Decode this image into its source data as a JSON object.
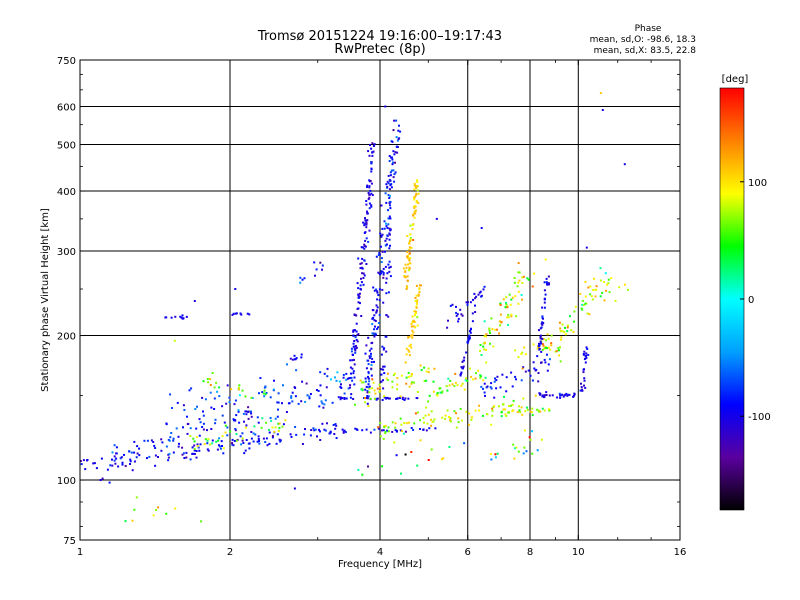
{
  "chart_data": {
    "type": "scatter",
    "title_line1": "Tromsø 20151224 19:16:00–19:17:43",
    "title_line2": "RwPretec (8p)",
    "xlabel": "Frequency [MHz]",
    "ylabel": "Stationary phase Virtual Height [km]",
    "x_scale": "log",
    "y_scale": "log",
    "xlim": [
      1,
      16
    ],
    "ylim": [
      75,
      750
    ],
    "x_ticks": [
      1,
      2,
      4,
      6,
      8,
      10,
      16
    ],
    "y_ticks": [
      75,
      100,
      200,
      300,
      400,
      500,
      600,
      750
    ],
    "x_gridlines": [
      2,
      4,
      6,
      8,
      10
    ],
    "y_gridlines": [
      100,
      200,
      300,
      400,
      500,
      600
    ],
    "grid": true,
    "phase_stats": {
      "heading": "Phase",
      "line_o": "mean, sd,O: -98.6, 18.3",
      "line_x": "mean, sd,X:  83.5, 22.8"
    },
    "colorbar": {
      "label": "[deg]",
      "range": [
        -180,
        180
      ],
      "ticks": [
        100,
        0,
        -100
      ],
      "colors": [
        "#000000",
        "#5a00a0",
        "#0000ff",
        "#00a0ff",
        "#00ffff",
        "#00ff00",
        "#ffff00",
        "#ff8000",
        "#ff0000"
      ]
    },
    "series": [
      {
        "type": "trace",
        "start": [
          1.0,
          107
        ],
        "end": [
          3.3,
          128
        ],
        "count": 150,
        "phase": -95,
        "phase_sd": 18,
        "jitter": 0.025
      },
      {
        "type": "trace",
        "start": [
          1.15,
          113
        ],
        "end": [
          3.5,
          155
        ],
        "count": 110,
        "phase": -90,
        "phase_sd": 20,
        "jitter": 0.03
      },
      {
        "type": "trace",
        "start": [
          1.6,
          118
        ],
        "end": [
          2.6,
          130
        ],
        "count": 40,
        "phase": 60,
        "phase_sd": 40,
        "jitter": 0.03
      },
      {
        "type": "trace",
        "start": [
          1.5,
          140
        ],
        "end": [
          3.6,
          165
        ],
        "count": 70,
        "phase": -75,
        "phase_sd": 25,
        "jitter": 0.04
      },
      {
        "type": "trace",
        "start": [
          1.75,
          160
        ],
        "end": [
          2.4,
          152
        ],
        "count": 20,
        "phase": 60,
        "phase_sd": 30,
        "jitter": 0.02
      },
      {
        "type": "trace",
        "start": [
          3.3,
          148
        ],
        "end": [
          4.8,
          148
        ],
        "count": 35,
        "phase": -98,
        "phase_sd": 12,
        "jitter": 0.005
      },
      {
        "type": "trace",
        "start": [
          3.3,
          127
        ],
        "end": [
          5.2,
          127
        ],
        "count": 30,
        "phase": -98,
        "phase_sd": 15,
        "jitter": 0.005
      },
      {
        "type": "trace",
        "start": [
          3.5,
          160
        ],
        "end": [
          3.9,
          520
        ],
        "count": 150,
        "phase": -100,
        "phase_sd": 15,
        "jitter": 0.03
      },
      {
        "type": "trace",
        "start": [
          3.75,
          150
        ],
        "end": [
          4.35,
          560
        ],
        "count": 180,
        "phase": -92,
        "phase_sd": 20,
        "jitter": 0.035
      },
      {
        "type": "trace",
        "start": [
          4.05,
          160
        ],
        "end": [
          4.2,
          330
        ],
        "count": 40,
        "phase": -100,
        "phase_sd": 10,
        "jitter": 0.02
      },
      {
        "type": "trace",
        "start": [
          4.5,
          250
        ],
        "end": [
          4.75,
          420
        ],
        "count": 80,
        "phase": 105,
        "phase_sd": 15,
        "jitter": 0.025
      },
      {
        "type": "trace",
        "start": [
          4.55,
          180
        ],
        "end": [
          4.8,
          255
        ],
        "count": 50,
        "phase": 105,
        "phase_sd": 12,
        "jitter": 0.02
      },
      {
        "type": "trace",
        "start": [
          3.6,
          150
        ],
        "end": [
          5.2,
          170
        ],
        "count": 60,
        "phase": 85,
        "phase_sd": 25,
        "jitter": 0.03
      },
      {
        "type": "trace",
        "start": [
          4.0,
          127
        ],
        "end": [
          8.5,
          145
        ],
        "count": 90,
        "phase": 80,
        "phase_sd": 25,
        "jitter": 0.03
      },
      {
        "type": "trace",
        "start": [
          5.0,
          150
        ],
        "end": [
          6.5,
          170
        ],
        "count": 40,
        "phase": 75,
        "phase_sd": 30,
        "jitter": 0.03
      },
      {
        "type": "trace",
        "start": [
          5.5,
          215
        ],
        "end": [
          6.5,
          245
        ],
        "count": 30,
        "phase": -98,
        "phase_sd": 12,
        "jitter": 0.025
      },
      {
        "type": "trace",
        "start": [
          5.8,
          165
        ],
        "end": [
          6.2,
          225
        ],
        "count": 30,
        "phase": -98,
        "phase_sd": 12,
        "jitter": 0.01
      },
      {
        "type": "trace",
        "start": [
          6.3,
          185
        ],
        "end": [
          8.0,
          275
        ],
        "count": 70,
        "phase": 80,
        "phase_sd": 35,
        "jitter": 0.045
      },
      {
        "type": "trace",
        "start": [
          6.4,
          155
        ],
        "end": [
          8.8,
          175
        ],
        "count": 45,
        "phase": -90,
        "phase_sd": 18,
        "jitter": 0.03
      },
      {
        "type": "trace",
        "start": [
          8.3,
          150
        ],
        "end": [
          9.9,
          150
        ],
        "count": 30,
        "phase": -98,
        "phase_sd": 12,
        "jitter": 0.006
      },
      {
        "type": "trace",
        "start": [
          7.5,
          180
        ],
        "end": [
          9.0,
          195
        ],
        "count": 30,
        "phase": 90,
        "phase_sd": 25,
        "jitter": 0.03
      },
      {
        "type": "trace",
        "start": [
          7.0,
          140
        ],
        "end": [
          8.8,
          140
        ],
        "count": 25,
        "phase": 80,
        "phase_sd": 30,
        "jitter": 0.01
      },
      {
        "type": "trace",
        "start": [
          8.3,
          180
        ],
        "end": [
          8.7,
          270
        ],
        "count": 40,
        "phase": -100,
        "phase_sd": 12,
        "jitter": 0.015
      },
      {
        "type": "trace",
        "start": [
          9.0,
          190
        ],
        "end": [
          11.5,
          270
        ],
        "count": 50,
        "phase": 70,
        "phase_sd": 30,
        "jitter": 0.04
      },
      {
        "type": "trace",
        "start": [
          10.2,
          152
        ],
        "end": [
          10.4,
          190
        ],
        "count": 25,
        "phase": -100,
        "phase_sd": 10,
        "jitter": 0.02
      },
      {
        "type": "trace",
        "start": [
          1.45,
          218
        ],
        "end": [
          1.65,
          218
        ],
        "count": 10,
        "phase": -100,
        "phase_sd": 5,
        "jitter": 0.004
      },
      {
        "type": "trace",
        "start": [
          2.0,
          222
        ],
        "end": [
          2.2,
          222
        ],
        "count": 8,
        "phase": -100,
        "phase_sd": 5,
        "jitter": 0.004
      },
      {
        "type": "trace",
        "start": [
          2.7,
          260
        ],
        "end": [
          3.1,
          280
        ],
        "count": 10,
        "phase": -90,
        "phase_sd": 20,
        "jitter": 0.02
      },
      {
        "type": "trace",
        "start": [
          2.6,
          180
        ],
        "end": [
          2.8,
          180
        ],
        "count": 8,
        "phase": -95,
        "phase_sd": 10,
        "jitter": 0.01
      },
      {
        "type": "trace",
        "start": [
          6.5,
          110
        ],
        "end": [
          8.5,
          120
        ],
        "count": 20,
        "phase": 30,
        "phase_sd": 80,
        "jitter": 0.04
      },
      {
        "type": "trace",
        "start": [
          1.2,
          85
        ],
        "end": [
          1.7,
          85
        ],
        "count": 8,
        "phase": 70,
        "phase_sd": 30,
        "jitter": 0.015
      },
      {
        "type": "trace",
        "start": [
          3.6,
          105
        ],
        "end": [
          6.0,
          115
        ],
        "count": 15,
        "phase": 40,
        "phase_sd": 90,
        "jitter": 0.04
      },
      {
        "type": "trace",
        "start": [
          10.0,
          240
        ],
        "end": [
          12.5,
          255
        ],
        "count": 15,
        "phase": 90,
        "phase_sd": 25,
        "jitter": 0.03
      }
    ],
    "isolated_points": [
      [
        11.1,
        640,
        110
      ],
      [
        11.2,
        590,
        -100
      ],
      [
        12.4,
        455,
        -100
      ],
      [
        2.7,
        96,
        -100
      ],
      [
        1.75,
        82,
        60
      ],
      [
        1.1,
        100,
        -100
      ],
      [
        1.3,
        92,
        70
      ],
      [
        1.55,
        195,
        80
      ],
      [
        1.7,
        236,
        -100
      ],
      [
        2.05,
        250,
        -100
      ],
      [
        8.6,
        288,
        90
      ],
      [
        10.4,
        305,
        -100
      ],
      [
        6.4,
        335,
        -100
      ],
      [
        5.2,
        350,
        -100
      ],
      [
        4.1,
        600,
        -100
      ]
    ]
  }
}
